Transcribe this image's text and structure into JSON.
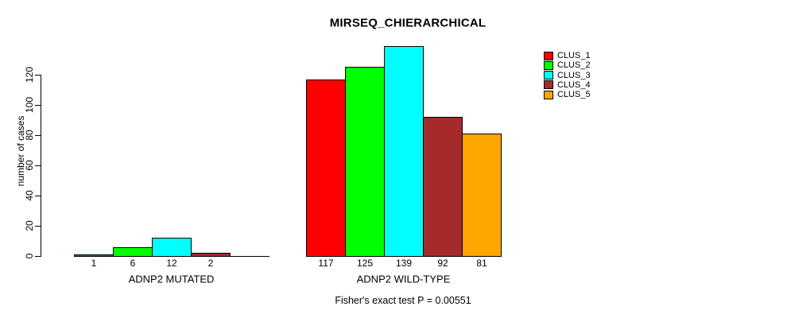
{
  "chart_data": {
    "type": "bar",
    "title": "MIRSEQ_CHIERARCHICAL",
    "xlabel": "",
    "ylabel": "number of cases",
    "ylim": [
      0,
      139
    ],
    "yticks": [
      0,
      20,
      40,
      60,
      80,
      100,
      120
    ],
    "grid": false,
    "legend": {
      "position": "top-right",
      "entries": [
        {
          "label": "CLUS_1",
          "color": "#FF0000"
        },
        {
          "label": "CLUS_2",
          "color": "#00FF00"
        },
        {
          "label": "CLUS_3",
          "color": "#00FFFF"
        },
        {
          "label": "CLUS_4",
          "color": "#A52A2A"
        },
        {
          "label": "CLUS_5",
          "color": "#FFA500"
        }
      ]
    },
    "groups": [
      {
        "label": "ADNP2 MUTATED",
        "bars": [
          {
            "series": "CLUS_1",
            "value": 1,
            "label": "1",
            "color": "#FF0000"
          },
          {
            "series": "CLUS_2",
            "value": 6,
            "label": "6",
            "color": "#00FF00"
          },
          {
            "series": "CLUS_3",
            "value": 12,
            "label": "12",
            "color": "#00FFFF"
          },
          {
            "series": "CLUS_4",
            "value": 2,
            "label": "2",
            "color": "#A52A2A"
          },
          {
            "series": "CLUS_5",
            "value": 0,
            "label": "",
            "color": "#FFA500"
          }
        ]
      },
      {
        "label": "ADNP2 WILD-TYPE",
        "bars": [
          {
            "series": "CLUS_1",
            "value": 117,
            "label": "117",
            "color": "#FF0000"
          },
          {
            "series": "CLUS_2",
            "value": 125,
            "label": "125",
            "color": "#00FF00"
          },
          {
            "series": "CLUS_3",
            "value": 139,
            "label": "139",
            "color": "#00FFFF"
          },
          {
            "series": "CLUS_4",
            "value": 92,
            "label": "92",
            "color": "#A52A2A"
          },
          {
            "series": "CLUS_5",
            "value": 81,
            "label": "81",
            "color": "#FFA500"
          }
        ]
      }
    ],
    "annotation": "Fisher's exact test P = 0.00551"
  }
}
